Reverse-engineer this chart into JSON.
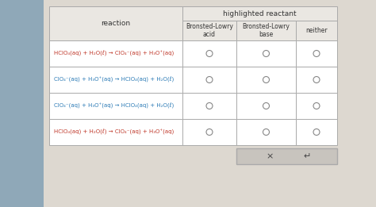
{
  "title": "highlighted reactant",
  "col1_header": "reaction",
  "col2_header": "Bronsted-Lowry\nacid",
  "col3_header": "Bronsted-Lowry\nbase",
  "col4_header": "neither",
  "rows": [
    "HClO₄(aq) + H₂O(ℓ) → ClO₄⁻(aq) + H₃O⁺(aq)",
    "ClO₄⁻(aq) + H₃O⁺(aq) → HClO₄(aq) + H₂O(ℓ)",
    "ClO₄⁻(aq) + H₃O⁺(aq) → HClO₄(aq) + H₂O(ℓ)",
    "HClO₄(aq) + H₂O(ℓ) → ClO₄⁻(aq) + H₃O⁺(aq)"
  ],
  "row_colors": [
    "#c0392b",
    "#2c7bb6",
    "#2c7bb6",
    "#c0392b"
  ],
  "bg_left_color": "#8fa8b8",
  "bg_right_color": "#ddd8d0",
  "table_bg": "#ffffff",
  "header_bg": "#eae7e2",
  "border_color": "#aaaaaa",
  "button_bg": "#c8c4be",
  "button_text_x": "×",
  "button_text_undo": "↵"
}
